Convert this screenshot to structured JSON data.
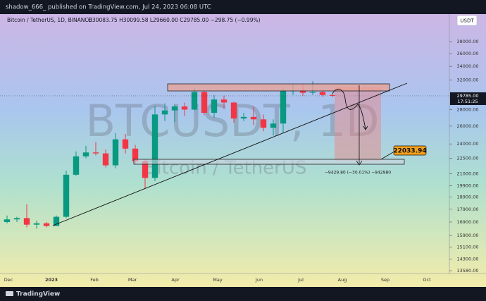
{
  "header": {
    "publisher": "shadow_666_ published on TradingView.com, Jul 24, 2023 06:08 UTC",
    "symbol": "Bitcoin / TetherUS, 1D, BINANCE",
    "ohlc": "O30083.75 H30099.58 L29660.00 C29785.00 −298.75 (−0.99%)",
    "currency": "USDT"
  },
  "chart_data": {
    "type": "candlestick",
    "log_scale": true,
    "up_color": "#089981",
    "down_color": "#f23645",
    "open": [
      16900,
      17100,
      17200,
      16700,
      16800,
      16600,
      17300,
      20900,
      22700,
      23100,
      23000,
      21800,
      24500,
      23500,
      22200,
      20600,
      27400,
      27900,
      28400,
      28000,
      30300,
      27600,
      29300,
      28900,
      26900,
      27100,
      26800,
      25800,
      26300,
      30500,
      30500,
      30200,
      30300,
      29900
    ],
    "high": [
      17400,
      17300,
      18300,
      17000,
      16900,
      17400,
      21300,
      23200,
      23800,
      24200,
      23400,
      25200,
      25100,
      23900,
      22400,
      28500,
      28800,
      28600,
      28900,
      30900,
      30500,
      29900,
      29800,
      29000,
      27600,
      28400,
      27400,
      26800,
      30800,
      31400,
      31300,
      31800,
      30400,
      30100
    ],
    "low": [
      16800,
      16900,
      16500,
      16400,
      16500,
      16600,
      17200,
      20800,
      22500,
      22800,
      21600,
      21500,
      23000,
      21900,
      19600,
      20300,
      26600,
      26500,
      27200,
      27900,
      27300,
      27000,
      28100,
      26400,
      26600,
      26100,
      25400,
      24900,
      25200,
      29900,
      29800,
      29900,
      29700,
      29600
    ],
    "close": [
      17100,
      17200,
      16700,
      16800,
      16600,
      17300,
      20900,
      22700,
      23100,
      23000,
      21800,
      24500,
      23500,
      22200,
      20600,
      27400,
      27900,
      28400,
      28000,
      30300,
      27600,
      29300,
      28900,
      26900,
      27100,
      26800,
      25800,
      26300,
      30500,
      30500,
      30200,
      30300,
      29900,
      29785
    ],
    "ylim": [
      13410,
      43000
    ],
    "yticks": [
      {
        "value": 38000,
        "label": "38000.00"
      },
      {
        "value": 36000,
        "label": "36000.00"
      },
      {
        "value": 34000,
        "label": "34000.00"
      },
      {
        "value": 32000,
        "label": "32000.00"
      },
      {
        "value": 28000,
        "label": "28000.00"
      },
      {
        "value": 26000,
        "label": "26000.00"
      },
      {
        "value": 24000,
        "label": "24000.00"
      },
      {
        "value": 22500,
        "label": "22500.00"
      },
      {
        "value": 21000,
        "label": "21000.00"
      },
      {
        "value": 19900,
        "label": "19900.00"
      },
      {
        "value": 18900,
        "label": "18900.00"
      },
      {
        "value": 17900,
        "label": "17900.00"
      },
      {
        "value": 16900,
        "label": "16900.00"
      },
      {
        "value": 15900,
        "label": "15900.00"
      },
      {
        "value": 15100,
        "label": "15100.00"
      },
      {
        "value": 14300,
        "label": "14300.00"
      },
      {
        "value": 13580,
        "label": "13580.00"
      }
    ],
    "last_price": {
      "value": 29785,
      "label": "29785.00"
    },
    "countdown": "17:51:25",
    "xticks": [
      "Dec",
      "2023",
      "Feb",
      "Mar",
      "Apr",
      "May",
      "Jun",
      "Jul",
      "Aug",
      "Sep",
      "Oct"
    ]
  },
  "watermark": {
    "symbol": "BTCUSDT, 1D",
    "name": "Bitcoin / TetherUS"
  },
  "annotations": {
    "target": 22033.94,
    "measure": "−9429.80 (−30.01%) −942980"
  },
  "footer": {
    "brand": "TradingView"
  }
}
